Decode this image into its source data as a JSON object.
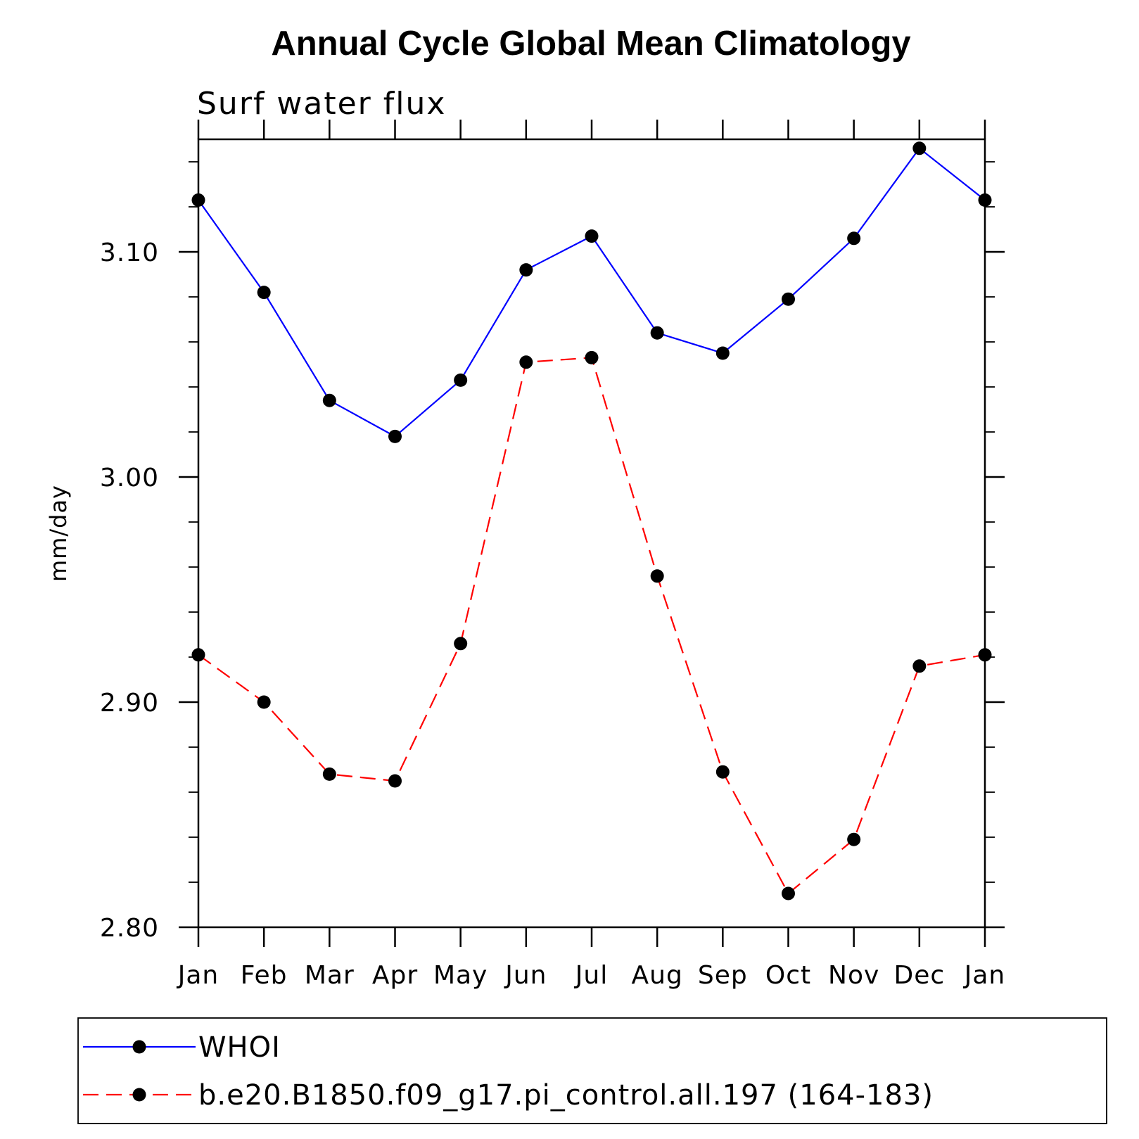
{
  "chart_data": {
    "type": "line",
    "title": "Annual Cycle Global Mean Climatology",
    "subtitle": "Surf water flux",
    "ylabel": "mm/day",
    "xlabel": "",
    "categories": [
      "Jan",
      "Feb",
      "Mar",
      "Apr",
      "May",
      "Jun",
      "Jul",
      "Aug",
      "Sep",
      "Oct",
      "Nov",
      "Dec",
      "Jan"
    ],
    "ylim": [
      2.8,
      3.15
    ],
    "yticks": [
      2.8,
      2.9,
      3.0,
      3.1
    ],
    "ytick_labels": [
      "2.80",
      "2.90",
      "3.00",
      "3.10"
    ],
    "y_minor_step": 0.02,
    "grid": false,
    "legend_position": "bottom",
    "series": [
      {
        "name": "WHOI",
        "color": "#0000ff",
        "line_style": "solid",
        "marker": "filled-circle",
        "values": [
          3.123,
          3.082,
          3.034,
          3.018,
          3.043,
          3.092,
          3.107,
          3.064,
          3.055,
          3.079,
          3.106,
          3.146,
          3.123
        ]
      },
      {
        "name": "b.e20.B1850.f09_g17.pi_control.all.197 (164-183)",
        "color": "#ff0000",
        "line_style": "dashed",
        "marker": "filled-circle",
        "values": [
          2.921,
          2.9,
          2.868,
          2.865,
          2.926,
          3.051,
          3.053,
          2.956,
          2.869,
          2.815,
          2.839,
          2.916,
          2.921
        ]
      }
    ]
  }
}
